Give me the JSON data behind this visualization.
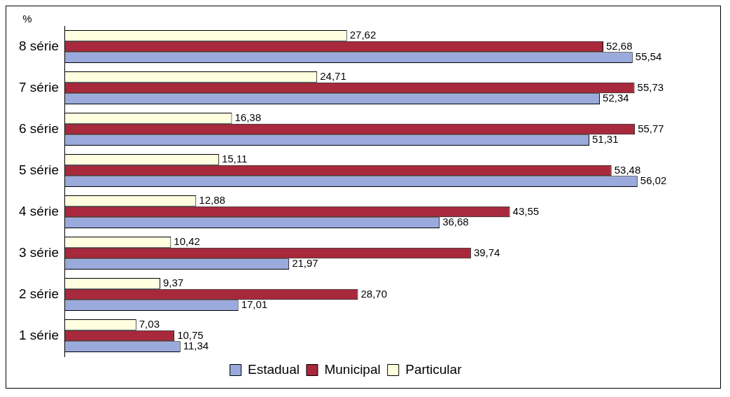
{
  "chart_data": {
    "type": "bar",
    "orientation": "horizontal",
    "ylabel": "%",
    "categories": [
      "8 série",
      "7 série",
      "6 série",
      "5 série",
      "4 série",
      "3 série",
      "2 série",
      "1 série"
    ],
    "series": [
      {
        "name": "Estadual",
        "color": "#9aaadc",
        "values": [
          55.54,
          52.34,
          51.31,
          56.02,
          36.68,
          21.97,
          17.01,
          11.34
        ],
        "value_labels": [
          "55,54",
          "52,34",
          "51,31",
          "56,02",
          "36,68",
          "21,97",
          "17,01",
          "11,34"
        ]
      },
      {
        "name": "Municipal",
        "color": "#a8283c",
        "values": [
          52.68,
          55.73,
          55.77,
          53.48,
          43.55,
          39.74,
          28.7,
          10.75
        ],
        "value_labels": [
          "52,68",
          "55,73",
          "55,77",
          "53,48",
          "43,55",
          "39,74",
          "28,70",
          "10,75"
        ]
      },
      {
        "name": "Particular",
        "color": "#ffffe0",
        "values": [
          27.62,
          24.71,
          16.38,
          15.11,
          12.88,
          10.42,
          9.37,
          7.03
        ],
        "value_labels": [
          "27,62",
          "24,71",
          "16,38",
          "15,11",
          "12,88",
          "10,42",
          "9,37",
          "7,03"
        ]
      }
    ],
    "legend": "bottom"
  }
}
